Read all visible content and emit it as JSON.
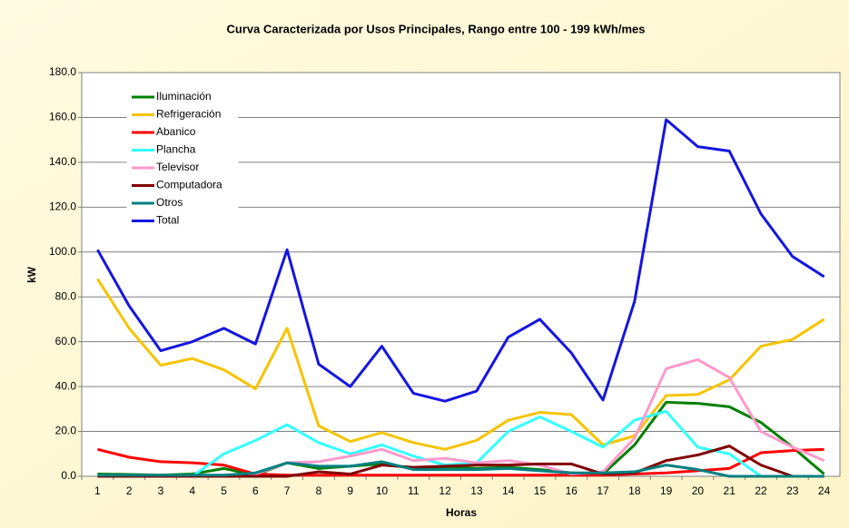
{
  "chart_data": {
    "type": "line",
    "title": "Curva Caracterizada por Usos Principales, Rango entre 100 - 199 kWh/mes",
    "xlabel": "Horas",
    "ylabel": "kW",
    "categories": [
      "1",
      "2",
      "3",
      "4",
      "5",
      "6",
      "7",
      "8",
      "9",
      "10",
      "11",
      "12",
      "13",
      "14",
      "15",
      "16",
      "17",
      "18",
      "19",
      "20",
      "21",
      "22",
      "23",
      "24"
    ],
    "ylim": [
      0,
      180
    ],
    "yticks": [
      {
        "value": 0,
        "label": "0.0"
      },
      {
        "value": 20,
        "label": "20.0"
      },
      {
        "value": 40,
        "label": "40.0"
      },
      {
        "value": 60,
        "label": "60.0"
      },
      {
        "value": 80,
        "label": "80.0"
      },
      {
        "value": 100,
        "label": "100.0"
      },
      {
        "value": 120,
        "label": "120.0"
      },
      {
        "value": 140,
        "label": "140.0"
      },
      {
        "value": 160,
        "label": "160.0"
      },
      {
        "value": 180,
        "label": "180.0"
      }
    ],
    "grid": true,
    "legend": "upper left",
    "series": [
      {
        "name": "Iluminación",
        "color": "#008000",
        "values": [
          1,
          0.8,
          0.5,
          1,
          3.5,
          0.5,
          6,
          3.5,
          4.5,
          5.5,
          3.5,
          4,
          3.5,
          4,
          3,
          1.5,
          1,
          14,
          33,
          32.5,
          31,
          24,
          13,
          1
        ]
      },
      {
        "name": "Refrigeración",
        "color": "#f5c400",
        "values": [
          88,
          66,
          49.5,
          52.5,
          47.5,
          39,
          66,
          22.5,
          15.5,
          19.5,
          15,
          12,
          16,
          25,
          28.5,
          27.5,
          14,
          18,
          36,
          36.5,
          43,
          58,
          61,
          70
        ]
      },
      {
        "name": "Abanico",
        "color": "#ff0000",
        "values": [
          12,
          8.5,
          6.5,
          6,
          5,
          1,
          0.5,
          0.5,
          0.5,
          0.5,
          0.5,
          0.5,
          0.5,
          0.5,
          0.5,
          0.5,
          0.5,
          1,
          1.5,
          2.5,
          3.5,
          10.5,
          11.5,
          12
        ]
      },
      {
        "name": "Plancha",
        "color": "#33ffff",
        "values": [
          0,
          0,
          0,
          0,
          10,
          16,
          23,
          15,
          10,
          14,
          9,
          5,
          6,
          20,
          26.5,
          20,
          13,
          25,
          29,
          13,
          10,
          0,
          0,
          0
        ]
      },
      {
        "name": "Televisor",
        "color": "#ff99cc",
        "values": [
          0,
          0,
          0,
          0,
          0.5,
          1,
          6,
          6.5,
          9,
          12,
          7,
          8,
          6,
          7,
          5,
          1,
          2,
          17,
          48,
          52,
          44,
          20,
          13,
          7
        ]
      },
      {
        "name": "Computadora",
        "color": "#800000",
        "values": [
          0,
          0,
          0,
          0,
          0,
          0,
          0,
          2,
          1,
          5,
          4,
          4.5,
          5,
          5,
          5.5,
          5.5,
          1,
          1.5,
          7,
          9.5,
          13.5,
          5,
          0,
          0
        ]
      },
      {
        "name": "Otros",
        "color": "#008080",
        "values": [
          0.5,
          0.5,
          0.5,
          0.5,
          0.5,
          1.5,
          6,
          4.5,
          4.5,
          6.5,
          3,
          3,
          3,
          3.5,
          2.5,
          1.5,
          1.5,
          2,
          5,
          3,
          0,
          0,
          0,
          0
        ]
      },
      {
        "name": "Total",
        "color": "#1515e0",
        "values": [
          101,
          76,
          56,
          60,
          66,
          59,
          101,
          50,
          40,
          58,
          37,
          33.5,
          38,
          62,
          70,
          55,
          34,
          78,
          159,
          147,
          145,
          117,
          98,
          89
        ]
      }
    ]
  }
}
